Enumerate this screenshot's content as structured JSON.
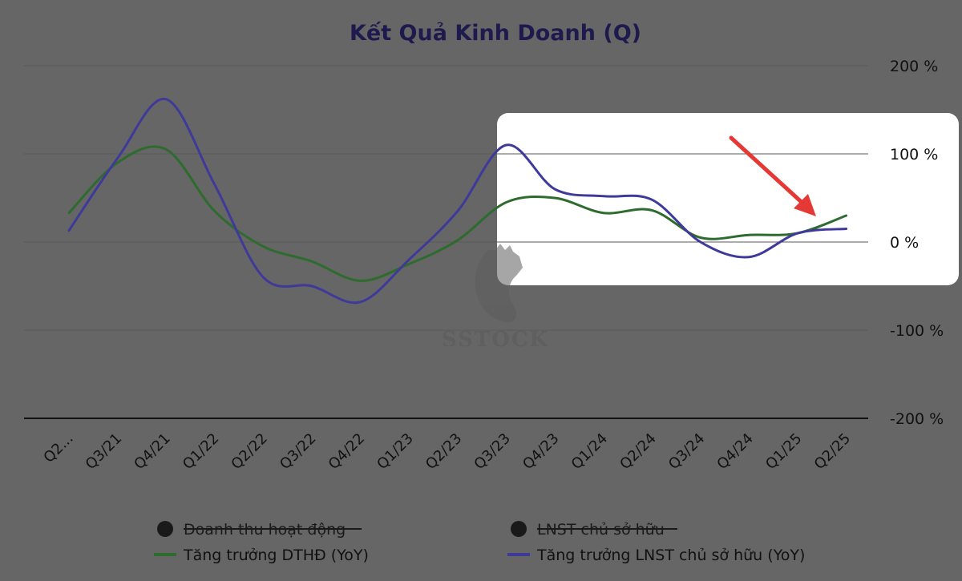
{
  "colors": {
    "background": "#666666",
    "highlight_box": "#ffffff",
    "grid": "#5a5a5a",
    "baseline": "#111111",
    "title": "#1f1a4d",
    "arrow": "#e53935"
  },
  "watermark": {
    "text": "SSTOCK"
  },
  "chart_data": {
    "type": "line",
    "title": "Kết Quả Kinh Doanh (Q)",
    "categories": [
      "Q2...",
      "Q3/21",
      "Q4/21",
      "Q1/22",
      "Q2/22",
      "Q3/22",
      "Q4/22",
      "Q1/23",
      "Q2/23",
      "Q3/23",
      "Q4/23",
      "Q1/24",
      "Q2/24",
      "Q3/24",
      "Q4/24",
      "Q1/25",
      "Q2/25"
    ],
    "y_axis": {
      "position": "right",
      "ylim": [
        -200,
        200
      ],
      "ticks": [
        200,
        100,
        0,
        -100,
        -200
      ],
      "tick_labels": [
        "200 %",
        "100 %",
        "0 %",
        "-100 %",
        "-200 %"
      ]
    },
    "grid": true,
    "legend_position": "bottom",
    "series": [
      {
        "name": "Tăng trưởng DTHĐ (YoY)",
        "color": "#2e6b2e",
        "values": [
          33,
          90,
          105,
          35,
          -5,
          -22,
          -44,
          -25,
          2,
          45,
          50,
          33,
          36,
          5,
          8,
          10,
          30
        ]
      },
      {
        "name": "Tăng trưởng LNST chủ sở hữu (YoY)",
        "color": "#3f3a9a",
        "values": [
          13,
          95,
          162,
          65,
          -40,
          -50,
          -68,
          -20,
          35,
          110,
          60,
          52,
          48,
          0,
          -17,
          10,
          15
        ]
      }
    ],
    "legend": [
      {
        "label": "Doanh thu hoạt động",
        "marker": "dot",
        "hidden": true
      },
      {
        "label": "LNST chủ sở hữu",
        "marker": "dot",
        "hidden": true
      },
      {
        "label": "Tăng trưởng DTHĐ (YoY)",
        "marker": "line",
        "color": "#2e6b2e",
        "hidden": false
      },
      {
        "label": "Tăng trưởng LNST chủ sở hữu (YoY)",
        "marker": "line",
        "color": "#3f3a9a",
        "hidden": false
      }
    ]
  }
}
